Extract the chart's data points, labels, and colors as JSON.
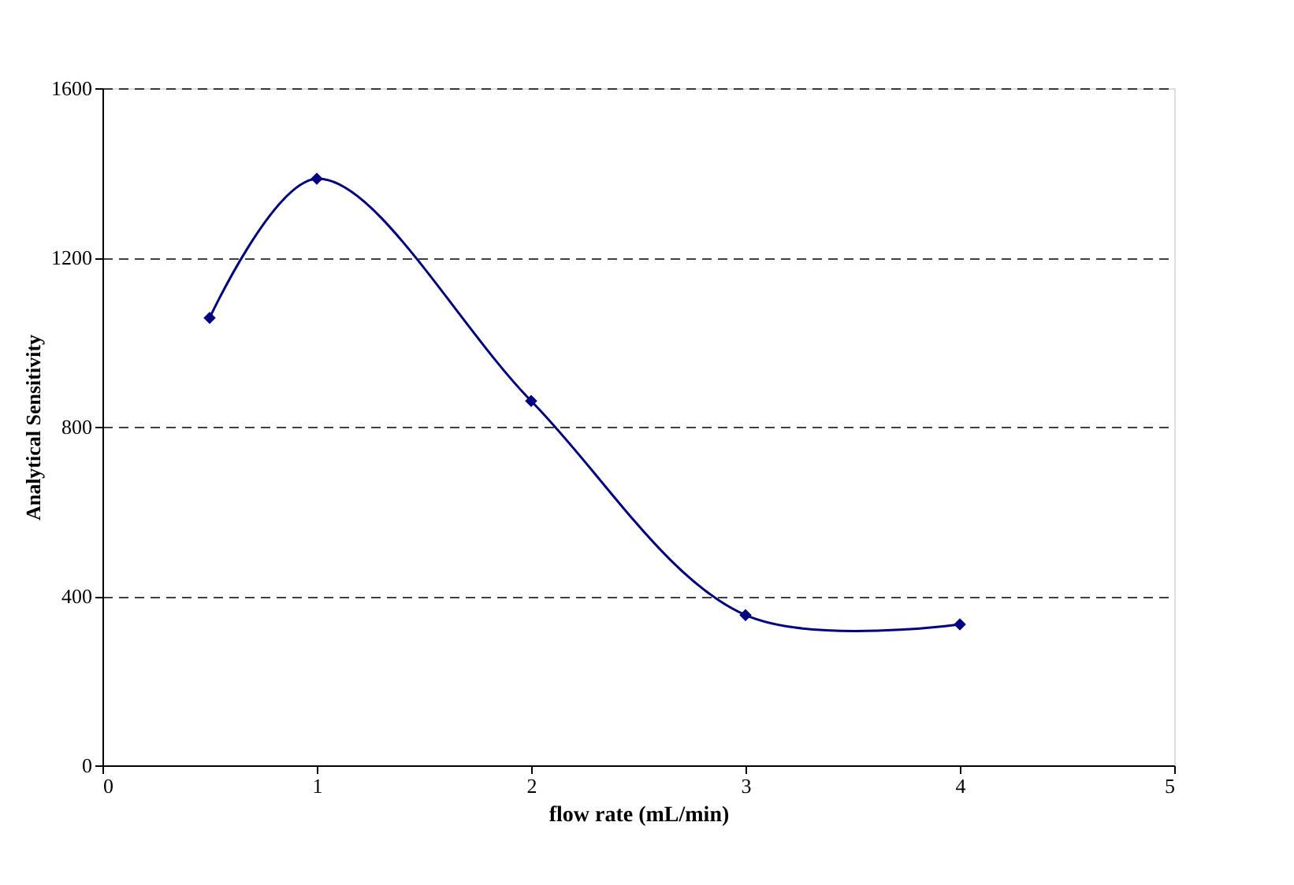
{
  "chart_data": {
    "type": "line",
    "xlabel": "flow rate (mL/min)",
    "ylabel": "Analytical Sensitivity",
    "x": [
      0.5,
      1,
      2,
      3,
      4
    ],
    "series": [
      {
        "color": "#000080",
        "values": [
          1057,
          1386,
          861,
          355,
          333
        ]
      }
    ],
    "xlim": [
      0,
      5
    ],
    "xticks": [
      0,
      1,
      2,
      3,
      4,
      5
    ],
    "ylim": [
      0,
      1600
    ],
    "yticks": [
      0,
      400,
      800,
      1200,
      1600
    ],
    "grid": "y",
    "marker": "diamond",
    "line_style": "solid"
  }
}
